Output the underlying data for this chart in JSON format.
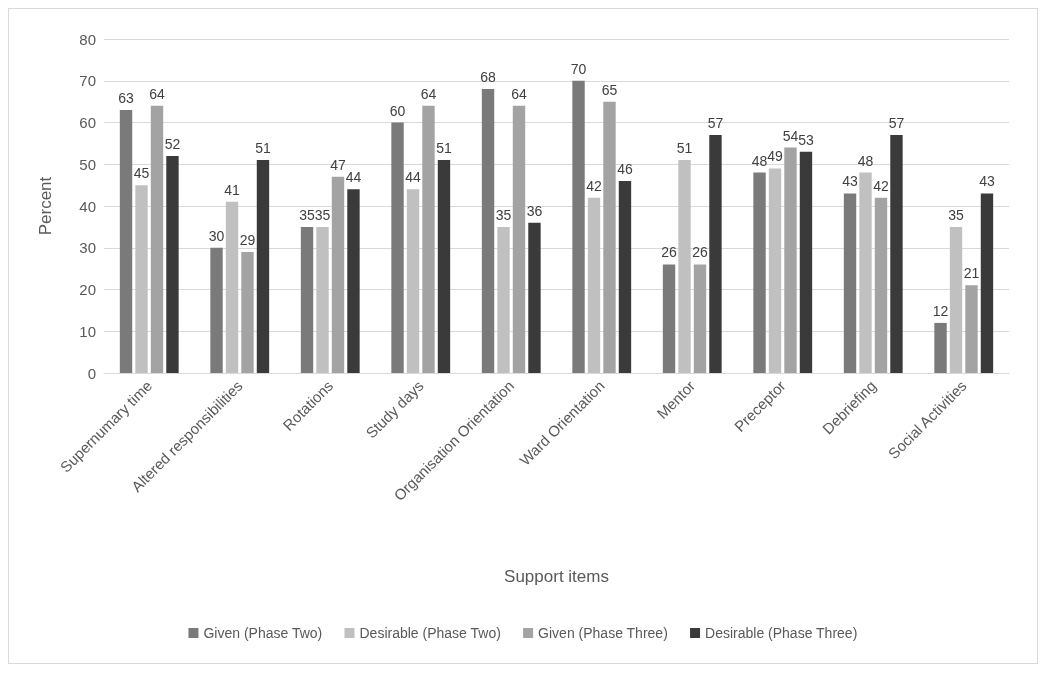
{
  "chart_data": {
    "type": "bar",
    "xlabel": "Support items",
    "ylabel": "Percent",
    "categories": [
      "Supernumary time",
      "Altered responsibilities",
      "Rotations",
      "Study days",
      "Organisation Orientation",
      "Ward Orientation",
      "Mentor",
      "Preceptor",
      "Debriefing",
      "Social Activities"
    ],
    "series": [
      {
        "name": "Given (Phase Two)",
        "color": "#7a7a7a",
        "values": [
          63,
          30,
          35,
          60,
          68,
          70,
          26,
          48,
          43,
          12
        ]
      },
      {
        "name": "Desirable (Phase Two)",
        "color": "#c0c0c0",
        "values": [
          45,
          41,
          35,
          44,
          35,
          42,
          51,
          49,
          48,
          35
        ]
      },
      {
        "name": "Given (Phase Three)",
        "color": "#a3a3a3",
        "values": [
          64,
          29,
          47,
          64,
          64,
          65,
          26,
          54,
          42,
          21
        ]
      },
      {
        "name": "Desirable (Phase Three)",
        "color": "#3a3a3a",
        "values": [
          52,
          51,
          44,
          51,
          36,
          46,
          57,
          53,
          57,
          43
        ]
      }
    ],
    "ylim": [
      0,
      80
    ],
    "yticks": [
      0,
      10,
      20,
      30,
      40,
      50,
      60,
      70,
      80
    ],
    "grid": "y",
    "legend": "bottom",
    "data_labels": true
  }
}
